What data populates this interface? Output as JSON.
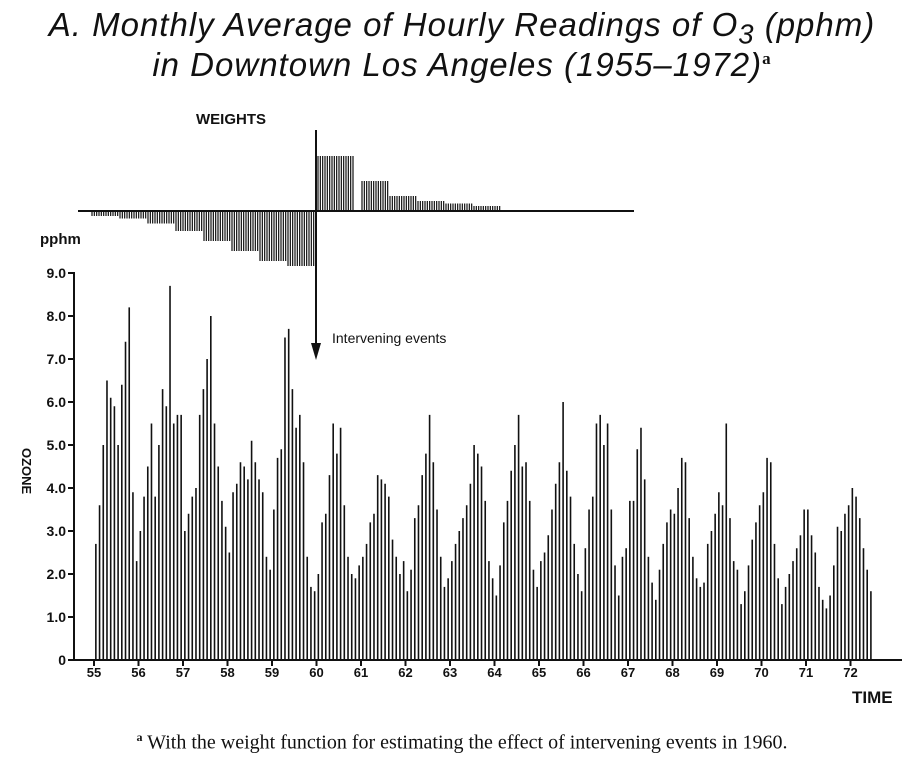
{
  "title": {
    "line1": "A. Monthly Average of Hourly Readings of O",
    "sub": "3",
    "line1_end": " (pphm)",
    "line2": "in Downtown Los Angeles (1955–1972)",
    "marker": "a"
  },
  "footnote": {
    "marker": "a",
    "text": " With the weight function for estimating the effect of intervening events in 1960."
  },
  "chart_data": {
    "type": "bar",
    "ylabel": "OZONE",
    "yunit": "pphm",
    "xlabel": "TIME",
    "ylim": [
      0,
      9
    ],
    "yticks": [
      "0",
      "1.0",
      "2.0",
      "3.0",
      "4.0",
      "5.0",
      "6.0",
      "7.0",
      "8.0",
      "9.0"
    ],
    "xticks": [
      "55",
      "56",
      "57",
      "58",
      "59",
      "60",
      "61",
      "62",
      "63",
      "64",
      "65",
      "66",
      "67",
      "68",
      "69",
      "70",
      "71",
      "72"
    ],
    "start_year": 1955,
    "values": [
      2.7,
      3.6,
      5.0,
      6.5,
      6.1,
      5.9,
      5.0,
      6.4,
      7.4,
      8.2,
      3.9,
      2.3,
      3.0,
      3.8,
      4.5,
      5.5,
      3.8,
      5.0,
      6.3,
      5.9,
      8.7,
      5.5,
      5.7,
      5.7,
      3.0,
      3.4,
      3.8,
      4.0,
      5.7,
      6.3,
      7.0,
      8.0,
      5.5,
      4.5,
      3.7,
      3.1,
      2.5,
      3.9,
      4.1,
      4.6,
      4.5,
      4.2,
      5.1,
      4.6,
      4.2,
      3.9,
      2.4,
      2.1,
      3.5,
      4.7,
      4.9,
      7.5,
      7.7,
      6.3,
      5.4,
      5.7,
      4.6,
      2.4,
      1.7,
      1.6,
      2.0,
      3.2,
      3.4,
      4.3,
      5.5,
      4.8,
      5.4,
      3.6,
      2.4,
      2.0,
      1.9,
      2.2,
      2.4,
      2.7,
      3.2,
      3.4,
      4.3,
      4.2,
      4.1,
      3.8,
      2.8,
      2.4,
      2.0,
      2.3,
      1.6,
      2.1,
      3.3,
      3.6,
      4.3,
      4.8,
      5.7,
      4.6,
      3.5,
      2.4,
      1.7,
      1.9,
      2.3,
      2.7,
      3.0,
      3.3,
      3.6,
      4.1,
      5.0,
      4.8,
      4.5,
      3.7,
      2.3,
      1.9,
      1.5,
      2.2,
      3.2,
      3.7,
      4.4,
      5.0,
      5.7,
      4.5,
      4.6,
      3.7,
      2.1,
      1.7,
      2.3,
      2.5,
      2.9,
      3.5,
      4.1,
      4.6,
      6.0,
      4.4,
      3.8,
      2.7,
      2.0,
      1.6,
      2.6,
      3.5,
      3.8,
      5.5,
      5.7,
      5.0,
      5.5,
      3.5,
      2.2,
      1.5,
      2.4,
      2.6,
      3.7,
      3.7,
      4.9,
      5.4,
      4.2,
      2.4,
      1.8,
      1.4,
      2.1,
      2.7,
      3.2,
      3.5,
      3.4,
      4.0,
      4.7,
      4.6,
      3.3,
      2.4,
      1.9,
      1.7,
      1.8,
      2.7,
      3.0,
      3.4,
      3.9,
      3.6,
      5.5,
      3.3,
      2.3,
      2.1,
      1.3,
      1.6,
      2.2,
      2.8,
      3.2,
      3.6,
      3.9,
      4.7,
      4.6,
      2.7,
      1.9,
      1.3,
      1.7,
      2.0,
      2.3,
      2.6,
      2.9,
      3.5,
      3.5,
      2.9,
      2.5,
      1.7,
      1.4,
      1.2,
      1.5,
      2.2,
      3.1,
      3.0,
      3.4,
      3.6,
      4.0,
      3.8,
      3.3,
      2.6,
      2.1,
      1.6
    ],
    "weights": {
      "label": "WEIGHTS",
      "before": [
        -0.1,
        -0.15,
        -0.25,
        -0.4,
        -0.6,
        -0.8,
        -1.0,
        -1.1
      ],
      "after": [
        1.1,
        0.6,
        0.3,
        0.2,
        0.15,
        0.1
      ],
      "annotation": "Intervening events"
    }
  }
}
